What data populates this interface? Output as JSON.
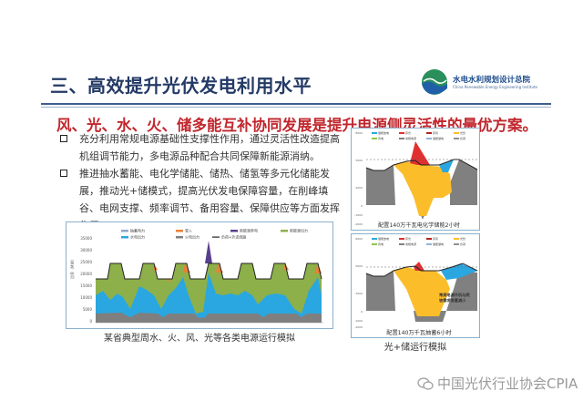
{
  "slide": {
    "title": "三、高效提升光伏发电利用水平",
    "logo": {
      "name": "水电水利规划设计总院",
      "english": "China Renewable Energy Engineering Institute",
      "badge": "CREEI"
    },
    "subtitle": "风、光、水、火、储多能互补协同发展是提升电源侧灵活性的最优方案。",
    "bullets": [
      "充分利用常规电源基础性支撑性作用，通过灵活性改造提高机组调节能力，多电源品种配合共同保障新能源消纳。",
      "推进抽水蓄能、电化学储能、储热、储氢等多元化储能发展，推动光+储模式，提高光伏发电保障容量，在削峰填谷、电网支撑、频率调节、备用容量、保障供应等方面发挥作用。"
    ],
    "watermark": "中国光伏行业协会CPIA"
  },
  "left_chart": {
    "caption": "某省典型周水、火、风、光等各类电源运行模拟",
    "ylabel": "功率（MW）",
    "yticks": [
      "35000",
      "30000",
      "25000",
      "20000",
      "15000",
      "10000",
      "5000",
      "0"
    ],
    "legend": [
      {
        "label": "抽蓄电力",
        "color": "#8fa8c8"
      },
      {
        "label": "受入",
        "color": "#e8823a"
      },
      {
        "label": "新能源弃电",
        "color": "#5a3f8e"
      },
      {
        "label": "新能源出力",
        "color": "#8db04a"
      },
      {
        "label": "水电出力",
        "color": "#2aa7e0"
      },
      {
        "label": "火电出力",
        "color": "#7f7f7f"
      },
      {
        "label": "负荷+外送线路",
        "color": "#222222"
      }
    ]
  },
  "right_charts": {
    "legend": [
      {
        "label": "储能放电",
        "color": "#2aa7e0"
      },
      {
        "label": "弃光",
        "color": "#e03030"
      },
      {
        "label": "弃风",
        "color": "#b22222"
      },
      {
        "label": "光伏",
        "color": "#fbbd2a"
      },
      {
        "label": "风电",
        "color": "#8dc84a"
      },
      {
        "label": "常规电源",
        "color": "#808080"
      },
      {
        "label": "储能储电",
        "color": "#8fb4d8"
      },
      {
        "label": "负荷",
        "color": "#222222"
      }
    ],
    "yticks": [
      "8000",
      "7000",
      "6000",
      "5000",
      "4000",
      "3000",
      "2000",
      "1000",
      "0",
      "-1000",
      "-2000"
    ],
    "chart1_caption": "配置140万千瓦电化学储能2小时",
    "chart2_caption_line1": "配置140万千瓦抽蓄6小时",
    "chart2_caption_line2": "光+储运行模拟",
    "chart2_annotation_line1": "常规电源开机与爬",
    "chart2_annotation_line2": "坡需求显著减小"
  }
}
